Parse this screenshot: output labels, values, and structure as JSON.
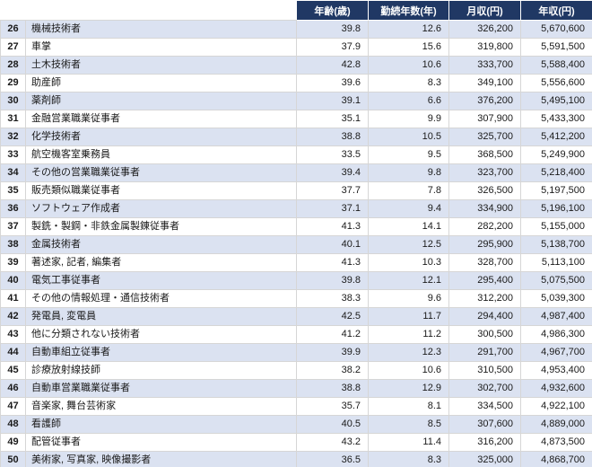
{
  "colors": {
    "header_bg": "#203864",
    "alt_row": "#dbe2f1",
    "grid_line": "#d6d6d6"
  },
  "chart_data": {
    "type": "table",
    "title": "",
    "columns": [
      "年齢(歳)",
      "勤続年数(年)",
      "月収(円)",
      "年収(円)"
    ],
    "rows": [
      {
        "rank": "26",
        "name": "機械技術者",
        "age": "39.8",
        "tenure": "12.6",
        "monthly": "326,200",
        "annual": "5,670,600"
      },
      {
        "rank": "27",
        "name": "車掌",
        "age": "37.9",
        "tenure": "15.6",
        "monthly": "319,800",
        "annual": "5,591,500"
      },
      {
        "rank": "28",
        "name": "土木技術者",
        "age": "42.8",
        "tenure": "10.6",
        "monthly": "333,700",
        "annual": "5,588,400"
      },
      {
        "rank": "29",
        "name": "助産師",
        "age": "39.6",
        "tenure": "8.3",
        "monthly": "349,100",
        "annual": "5,556,600"
      },
      {
        "rank": "30",
        "name": "薬剤師",
        "age": "39.1",
        "tenure": "6.6",
        "monthly": "376,200",
        "annual": "5,495,100"
      },
      {
        "rank": "31",
        "name": "金融営業職業従事者",
        "age": "35.1",
        "tenure": "9.9",
        "monthly": "307,900",
        "annual": "5,433,300"
      },
      {
        "rank": "32",
        "name": "化学技術者",
        "age": "38.8",
        "tenure": "10.5",
        "monthly": "325,700",
        "annual": "5,412,200"
      },
      {
        "rank": "33",
        "name": "航空機客室乗務員",
        "age": "33.5",
        "tenure": "9.5",
        "monthly": "368,500",
        "annual": "5,249,900"
      },
      {
        "rank": "34",
        "name": "その他の営業職業従事者",
        "age": "39.4",
        "tenure": "9.8",
        "monthly": "323,700",
        "annual": "5,218,400"
      },
      {
        "rank": "35",
        "name": "販売類似職業従事者",
        "age": "37.7",
        "tenure": "7.8",
        "monthly": "326,500",
        "annual": "5,197,500"
      },
      {
        "rank": "36",
        "name": "ソフトウェア作成者",
        "age": "37.1",
        "tenure": "9.4",
        "monthly": "334,900",
        "annual": "5,196,100"
      },
      {
        "rank": "37",
        "name": "製銑・製鋼・非鉄金属製錬従事者",
        "age": "41.3",
        "tenure": "14.1",
        "monthly": "282,200",
        "annual": "5,155,000"
      },
      {
        "rank": "38",
        "name": "金属技術者",
        "age": "40.1",
        "tenure": "12.5",
        "monthly": "295,900",
        "annual": "5,138,700"
      },
      {
        "rank": "39",
        "name": "著述家, 記者, 編集者",
        "age": "41.3",
        "tenure": "10.3",
        "monthly": "328,700",
        "annual": "5,113,100"
      },
      {
        "rank": "40",
        "name": "電気工事従事者",
        "age": "39.8",
        "tenure": "12.1",
        "monthly": "295,400",
        "annual": "5,075,500"
      },
      {
        "rank": "41",
        "name": "その他の情報処理・通信技術者",
        "age": "38.3",
        "tenure": "9.6",
        "monthly": "312,200",
        "annual": "5,039,300"
      },
      {
        "rank": "42",
        "name": "発電員, 変電員",
        "age": "42.5",
        "tenure": "11.7",
        "monthly": "294,400",
        "annual": "4,987,400"
      },
      {
        "rank": "43",
        "name": "他に分類されない技術者",
        "age": "41.2",
        "tenure": "11.2",
        "monthly": "300,500",
        "annual": "4,986,300"
      },
      {
        "rank": "44",
        "name": "自動車組立従事者",
        "age": "39.9",
        "tenure": "12.3",
        "monthly": "291,700",
        "annual": "4,967,700"
      },
      {
        "rank": "45",
        "name": "診療放射線技師",
        "age": "38.2",
        "tenure": "10.6",
        "monthly": "310,500",
        "annual": "4,953,400"
      },
      {
        "rank": "46",
        "name": "自動車営業職業従事者",
        "age": "38.8",
        "tenure": "12.9",
        "monthly": "302,700",
        "annual": "4,932,600"
      },
      {
        "rank": "47",
        "name": "音楽家, 舞台芸術家",
        "age": "35.7",
        "tenure": "8.1",
        "monthly": "334,500",
        "annual": "4,922,100"
      },
      {
        "rank": "48",
        "name": "看護師",
        "age": "40.5",
        "tenure": "8.5",
        "monthly": "307,600",
        "annual": "4,889,000"
      },
      {
        "rank": "49",
        "name": "配管従事者",
        "age": "43.2",
        "tenure": "11.4",
        "monthly": "316,200",
        "annual": "4,873,500"
      },
      {
        "rank": "50",
        "name": "美術家, 写真家, 映像撮影者",
        "age": "36.5",
        "tenure": "8.3",
        "monthly": "325,000",
        "annual": "4,868,700"
      }
    ]
  }
}
